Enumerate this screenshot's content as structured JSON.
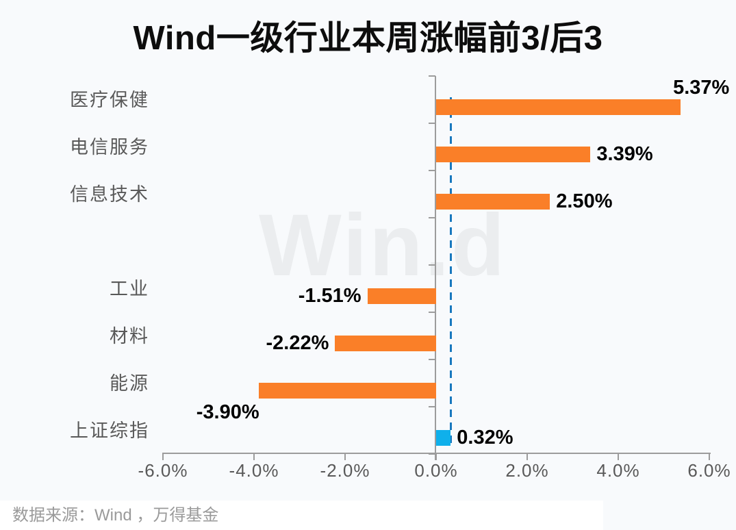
{
  "title": "Wind一级行业本周涨幅前3/后3",
  "watermark": "Win.d",
  "footer": {
    "source_text": "数据来源：Wind ，万得基金"
  },
  "colors": {
    "background": "#f8fafc",
    "bar_orange": "#fa7f28",
    "bar_blue": "#0fb0eb",
    "reference_line_blue": "#1878be",
    "axis_gray": "#9c9c9c",
    "category_label_gray": "#595959",
    "value_label_black": "#000000",
    "watermark_gray": "#ebedef",
    "footer_band_white": "#ffffff"
  },
  "chart_data": {
    "type": "bar",
    "orientation": "horizontal",
    "title": "Wind一级行业本周涨幅前3/后3",
    "xlabel": "",
    "ylabel": "",
    "xlim": [
      -6,
      6
    ],
    "grid": false,
    "legend": "none",
    "x_tick_values": [
      -6,
      -4,
      -2,
      0,
      2,
      4,
      6
    ],
    "x_tick_labels": [
      "-6.0%",
      "-4.0%",
      "-2.0%",
      "0.0%",
      "2.0%",
      "4.0%",
      "6.0%"
    ],
    "reference_line_value": 0.32,
    "categories": [
      "医疗保健",
      "电信服务",
      "信息技术",
      "",
      "工业",
      "材料",
      "能源",
      "上证综指"
    ],
    "values": [
      5.37,
      3.39,
      2.5,
      null,
      -1.51,
      -2.22,
      -3.9,
      0.32
    ],
    "items": [
      {
        "category": "医疗保健",
        "value": 5.37,
        "label": "5.37%",
        "color": "#fa7f28",
        "placement": "above-end"
      },
      {
        "category": "电信服务",
        "value": 3.39,
        "label": "3.39%",
        "color": "#fa7f28",
        "placement": "right"
      },
      {
        "category": "信息技术",
        "value": 2.5,
        "label": "2.50%",
        "color": "#fa7f28",
        "placement": "right"
      },
      {
        "category": "",
        "value": null,
        "label": "",
        "color": "",
        "placement": ""
      },
      {
        "category": "工业",
        "value": -1.51,
        "label": "-1.51%",
        "color": "#fa7f28",
        "placement": "left"
      },
      {
        "category": "材料",
        "value": -2.22,
        "label": "-2.22%",
        "color": "#fa7f28",
        "placement": "left"
      },
      {
        "category": "能源",
        "value": -3.9,
        "label": "-3.90%",
        "color": "#fa7f28",
        "placement": "below-start"
      },
      {
        "category": "上证综指",
        "value": 0.32,
        "label": "0.32%",
        "color": "#0fb0eb",
        "placement": "right"
      }
    ]
  }
}
